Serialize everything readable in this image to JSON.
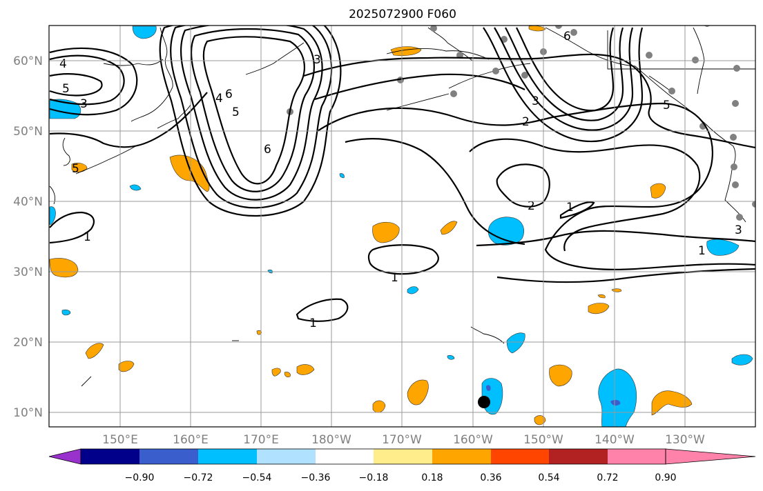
{
  "title": "2025072900 F060",
  "lon_ticks": [
    "150°E",
    "160°E",
    "170°E",
    "180°W",
    "170°W",
    "160°W",
    "150°W",
    "140°W",
    "130°W"
  ],
  "lat_ticks": [
    "10°N",
    "20°N",
    "30°N",
    "40°N",
    "50°N",
    "60°N"
  ],
  "colorbar": {
    "colors": [
      "#9932cc",
      "#00008b",
      "#3a5fcd",
      "#00bfff",
      "#b0e2ff",
      "#ffffff",
      "#ffec8b",
      "#ffa500",
      "#ff4500",
      "#b22222",
      "#ff82ab"
    ],
    "labels": [
      "−0.90",
      "−0.72",
      "−0.54",
      "−0.36",
      "−0.18",
      "0.18",
      "0.36",
      "0.54",
      "0.72",
      "0.90"
    ]
  },
  "contour_labels": [
    "1",
    "1",
    "1",
    "1",
    "1",
    "2",
    "2",
    "3",
    "3",
    "3",
    "3",
    "4",
    "4",
    "5",
    "5",
    "5",
    "5",
    "6",
    "6",
    "6"
  ]
}
